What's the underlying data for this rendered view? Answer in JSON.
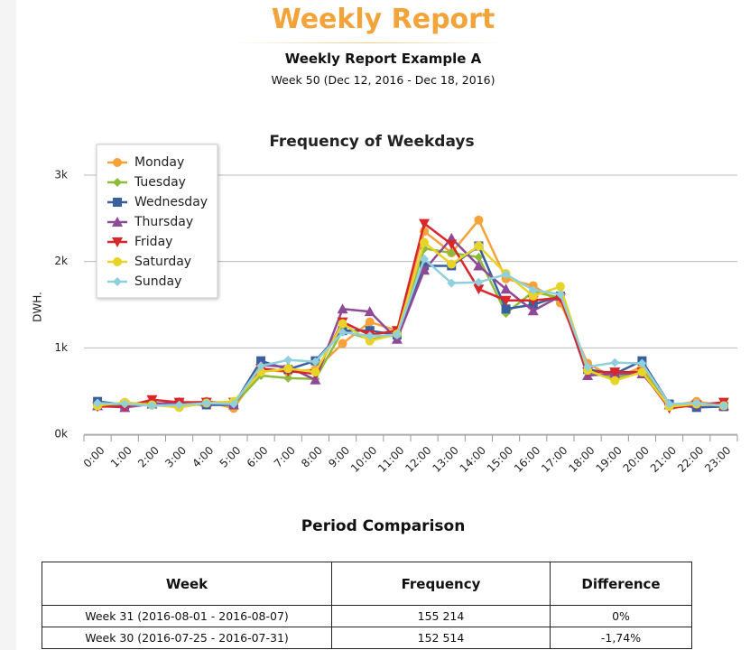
{
  "header": {
    "title": "Weekly Report",
    "subtitle": "Weekly Report Example A",
    "period": "Week 50 (Dec 12, 2016 - Dec 18, 2016)"
  },
  "chart_data": {
    "type": "line",
    "title": "Frequency of Weekdays",
    "y_label": "DWH.",
    "categories": [
      "0:00",
      "1:00",
      "2:00",
      "3:00",
      "4:00",
      "5:00",
      "6:00",
      "7:00",
      "8:00",
      "9:00",
      "10:00",
      "11:00",
      "12:00",
      "13:00",
      "14:00",
      "15:00",
      "16:00",
      "17:00",
      "18:00",
      "19:00",
      "20:00",
      "21:00",
      "22:00",
      "23:00"
    ],
    "ylim": [
      0,
      3000
    ],
    "yticks": [
      {
        "value": 0,
        "label": "0k"
      },
      {
        "value": 1000,
        "label": "1k"
      },
      {
        "value": 2000,
        "label": "2k"
      },
      {
        "value": 3000,
        "label": "3k"
      }
    ],
    "grid": true,
    "legend": "top-left",
    "series": [
      {
        "name": "Monday",
        "color": "#f5a23b",
        "marker": "circle",
        "values": [
          350,
          350,
          370,
          330,
          380,
          300,
          750,
          720,
          750,
          1050,
          1300,
          1200,
          2350,
          2100,
          2480,
          1800,
          1720,
          1520,
          820,
          650,
          780,
          330,
          380,
          330
        ]
      },
      {
        "name": "Tuesday",
        "color": "#8dbb3a",
        "marker": "diamond",
        "values": [
          350,
          340,
          360,
          350,
          380,
          340,
          680,
          650,
          640,
          1200,
          1100,
          1150,
          2150,
          2100,
          2050,
          1400,
          1650,
          1580,
          720,
          650,
          740,
          350,
          350,
          330
        ]
      },
      {
        "name": "Wednesday",
        "color": "#3a5f9e",
        "marker": "square",
        "values": [
          380,
          340,
          350,
          350,
          340,
          340,
          850,
          750,
          850,
          1200,
          1200,
          1150,
          1950,
          1950,
          2180,
          1450,
          1500,
          1600,
          750,
          700,
          850,
          350,
          310,
          320
        ]
      },
      {
        "name": "Thursday",
        "color": "#8e4a96",
        "marker": "triangle",
        "values": [
          330,
          310,
          350,
          370,
          370,
          340,
          800,
          780,
          630,
          1450,
          1420,
          1100,
          1900,
          2270,
          1950,
          1680,
          1430,
          1600,
          680,
          700,
          700,
          340,
          350,
          330
        ]
      },
      {
        "name": "Friday",
        "color": "#d8262b",
        "marker": "triangle-down",
        "values": [
          320,
          320,
          400,
          370,
          370,
          370,
          760,
          730,
          700,
          1300,
          1150,
          1200,
          2440,
          2200,
          1680,
          1550,
          1550,
          1580,
          720,
          720,
          720,
          300,
          340,
          370
        ]
      },
      {
        "name": "Saturday",
        "color": "#e8d329",
        "marker": "circle",
        "values": [
          330,
          370,
          340,
          310,
          360,
          380,
          720,
          760,
          720,
          1280,
          1080,
          1160,
          2220,
          1970,
          2180,
          1860,
          1600,
          1710,
          740,
          620,
          720,
          320,
          350,
          330
        ]
      },
      {
        "name": "Sunday",
        "color": "#8fd0dc",
        "marker": "diamond",
        "values": [
          360,
          350,
          330,
          340,
          360,
          350,
          790,
          860,
          840,
          1180,
          1140,
          1150,
          2030,
          1750,
          1760,
          1850,
          1670,
          1620,
          780,
          830,
          820,
          350,
          360,
          330
        ]
      }
    ]
  },
  "comparison": {
    "title": "Period Comparison",
    "table": {
      "header": [
        "Week",
        "Frequency",
        "Difference"
      ],
      "rows": [
        [
          "Week 31 (2016-08-01 - 2016-08-07)",
          "155 214",
          "0%"
        ],
        [
          "Week 30 (2016-07-25 - 2016-07-31)",
          "152 514",
          "-1,74%"
        ]
      ]
    }
  }
}
